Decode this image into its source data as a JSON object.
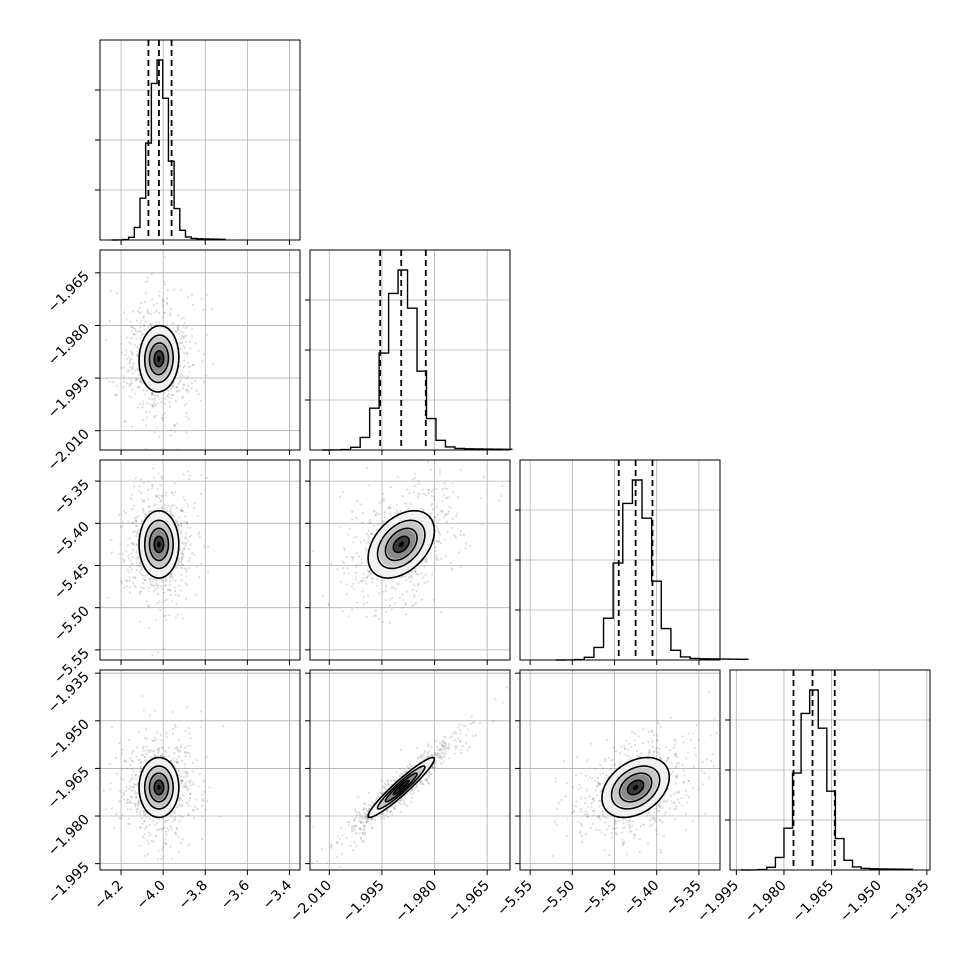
{
  "chart_data": {
    "type": "corner",
    "title": "",
    "grid": true,
    "params": [
      {
        "range": [
          -4.3,
          -3.35
        ],
        "ticks": [
          -4.2,
          -4.0,
          -3.8,
          -3.6,
          -3.4
        ],
        "tick_labels": [
          "−4.2",
          "−4.0",
          "−3.8",
          "−3.6",
          "−3.4"
        ],
        "mean": -4.02,
        "sd": 0.045,
        "quantiles": [
          -4.07,
          -4.02,
          -3.96
        ]
      },
      {
        "range": [
          -2.0155,
          -1.9585
        ],
        "ticks": [
          -2.01,
          -1.995,
          -1.98,
          -1.965
        ],
        "tick_labels": [
          "−2.010",
          "−1.995",
          "−1.980",
          "−1.965"
        ],
        "mean": -1.9895,
        "sd": 0.0045,
        "quantiles": [
          -1.9955,
          -1.9895,
          -1.9825
        ]
      },
      {
        "range": [
          -5.562,
          -5.325
        ],
        "ticks": [
          -5.55,
          -5.5,
          -5.45,
          -5.4,
          -5.35
        ],
        "tick_labels": [
          "−5.55",
          "−5.50",
          "−5.45",
          "−5.40",
          "−5.35"
        ],
        "mean": -5.425,
        "sd": 0.019,
        "quantiles": [
          -5.445,
          -5.425,
          -5.405
        ]
      },
      {
        "range": [
          -1.997,
          -1.934
        ],
        "ticks": [
          -1.995,
          -1.98,
          -1.965,
          -1.95,
          -1.935
        ],
        "tick_labels": [
          "−1.995",
          "−1.980",
          "−1.965",
          "−1.950",
          "−1.935"
        ],
        "mean": -1.971,
        "sd": 0.0045,
        "quantiles": [
          -1.977,
          -1.971,
          -1.964
        ]
      }
    ],
    "correlations": {
      "1-0": 0.05,
      "2-0": 0.0,
      "2-1": 0.4,
      "3-0": 0.0,
      "3-1": 0.95,
      "3-2": 0.35
    }
  }
}
